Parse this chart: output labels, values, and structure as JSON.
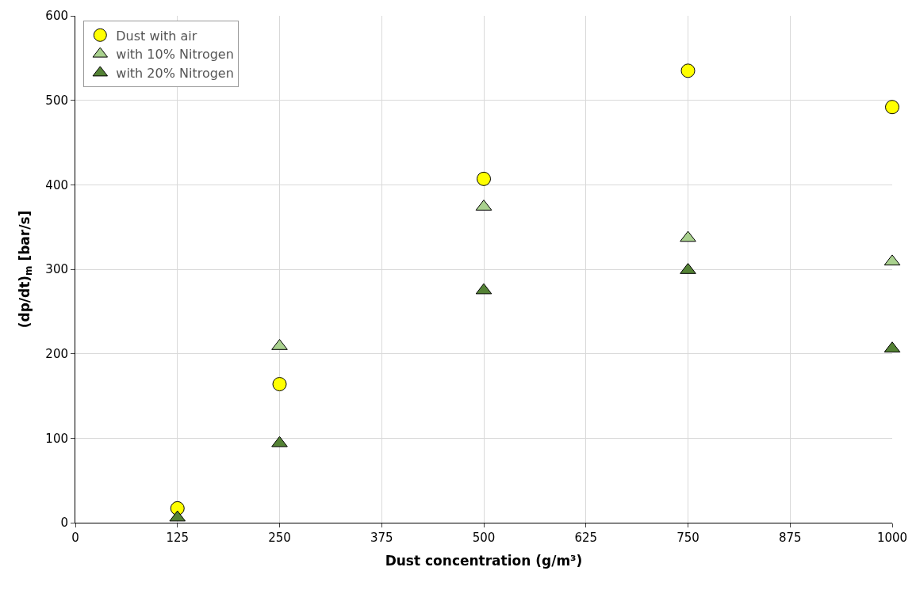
{
  "chart_data": {
    "type": "scatter",
    "xlabel": "Dust concentration (g/m³)",
    "ylabel": "(dp/dt)$_{m}$ [bar/s]",
    "x": [
      125,
      250,
      500,
      750,
      1000
    ],
    "series": [
      {
        "name": "Dust with air",
        "color": "#ffff00",
        "marker": "circle",
        "values": [
          17,
          164,
          407,
          535,
          492
        ]
      },
      {
        "name": "with 10% Nitrogen",
        "color": "#a9d18e",
        "marker": "triangle",
        "values": [
          null,
          209,
          374,
          337,
          309
        ]
      },
      {
        "name": "with 20% Nitrogen",
        "color": "#548235",
        "marker": "triangle",
        "values": [
          6,
          94,
          275,
          299,
          206
        ]
      }
    ],
    "xlim": [
      0,
      1000
    ],
    "xticks": [
      0,
      125,
      250,
      375,
      500,
      625,
      750,
      875,
      1000
    ],
    "ylim": [
      0,
      600
    ],
    "yticks": [
      0,
      100,
      200,
      300,
      400,
      500,
      600
    ],
    "grid": true,
    "legend": "top left"
  }
}
